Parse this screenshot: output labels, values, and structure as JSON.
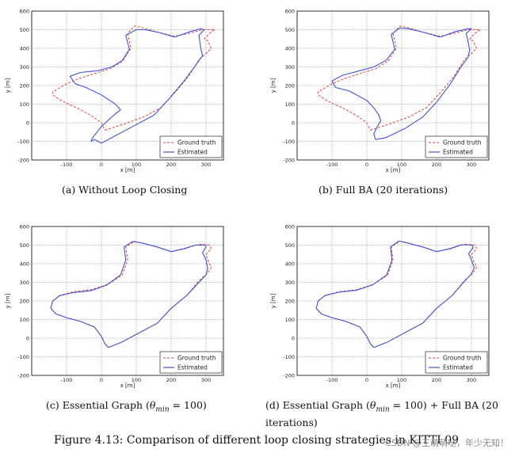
{
  "panels": [
    {
      "caption": "(a) Without Loop Closing",
      "xlabel": "x [m]",
      "ylabel": "y [m]",
      "legend": [
        "Ground truth",
        "Estimated"
      ]
    },
    {
      "caption": "(b) Full BA (20 iterations)",
      "xlabel": "x [m]",
      "ylabel": "y [m]",
      "legend": [
        "Ground truth",
        "Estimated"
      ]
    },
    {
      "caption": "(c) Essential Graph (θmin = 100)",
      "xlabel": "x [m]",
      "ylabel": "y [m]",
      "legend": [
        "Ground truth",
        "Estimated"
      ]
    },
    {
      "caption": "(d) Essential Graph (θmin = 100) + Full BA (20 iterations)",
      "xlabel": "x [m]",
      "ylabel": "y [m]",
      "legend": [
        "Ground truth",
        "Estimated"
      ]
    }
  ],
  "figure_caption": "Figure 4.13: Comparison of different loop closing strategies in KITTI 09",
  "watermark": "CSDN @王萌萌哒，年少无知！",
  "colors": {
    "ground_truth": "#e8403a",
    "estimated": "#3d55e0"
  },
  "chart_data": [
    {
      "type": "line",
      "xlim": [
        -200,
        350
      ],
      "ylim": [
        -200,
        600
      ],
      "xticks": [
        -100,
        0,
        100,
        200,
        300
      ],
      "yticks": [
        -200,
        -100,
        0,
        100,
        200,
        300,
        400,
        500,
        600
      ],
      "grid": true,
      "legend_position": "bottom-right",
      "series": [
        {
          "name": "Ground truth",
          "style": "dashed",
          "x": [
            10,
            60,
            120,
            170,
            215,
            250,
            280,
            305,
            315,
            305,
            295,
            310,
            325,
            290,
            250,
            210,
            165,
            120,
            95,
            75,
            85,
            60,
            25,
            -10,
            -60,
            -100,
            -140,
            -140,
            -120,
            -100,
            -70,
            -30,
            0,
            10
          ],
          "y": [
            -40,
            -10,
            30,
            80,
            170,
            250,
            340,
            380,
            400,
            440,
            450,
            480,
            500,
            500,
            480,
            465,
            485,
            510,
            520,
            480,
            400,
            330,
            290,
            270,
            240,
            210,
            165,
            150,
            125,
            105,
            80,
            40,
            0,
            -40
          ]
        },
        {
          "name": "Estimated",
          "style": "solid",
          "x": [
            -30,
            -20,
            0,
            40,
            90,
            150,
            190,
            235,
            265,
            290,
            285,
            280,
            295,
            285,
            255,
            210,
            165,
            125,
            100,
            70,
            80,
            60,
            30,
            -10,
            -60,
            -90,
            -75,
            -45,
            0,
            40,
            55,
            35,
            0,
            -25,
            -30
          ],
          "y": [
            -100,
            -90,
            -110,
            -70,
            -20,
            40,
            120,
            220,
            295,
            360,
            400,
            470,
            500,
            505,
            490,
            460,
            485,
            500,
            500,
            470,
            395,
            335,
            300,
            280,
            270,
            250,
            210,
            190,
            150,
            100,
            70,
            40,
            -20,
            -80,
            -100
          ]
        }
      ]
    },
    {
      "type": "line",
      "xlim": [
        -200,
        350
      ],
      "ylim": [
        -200,
        600
      ],
      "xticks": [
        -100,
        0,
        100,
        200,
        300
      ],
      "yticks": [
        -200,
        -100,
        0,
        100,
        200,
        300,
        400,
        500,
        600
      ],
      "grid": true,
      "legend_position": "bottom-right",
      "series": [
        {
          "name": "Ground truth",
          "style": "dashed",
          "x": [
            10,
            60,
            120,
            170,
            215,
            250,
            280,
            305,
            315,
            305,
            295,
            310,
            325,
            290,
            250,
            210,
            165,
            120,
            95,
            75,
            85,
            60,
            25,
            -10,
            -60,
            -100,
            -140,
            -140,
            -120,
            -100,
            -70,
            -30,
            0,
            10
          ],
          "y": [
            -40,
            -10,
            30,
            80,
            170,
            250,
            340,
            380,
            400,
            440,
            450,
            480,
            500,
            500,
            480,
            465,
            485,
            510,
            520,
            480,
            400,
            330,
            290,
            270,
            240,
            210,
            165,
            150,
            125,
            105,
            80,
            40,
            0,
            -40
          ]
        },
        {
          "name": "Estimated",
          "style": "solid",
          "x": [
            25,
            55,
            110,
            160,
            200,
            240,
            270,
            290,
            295,
            290,
            285,
            300,
            290,
            255,
            210,
            165,
            120,
            95,
            70,
            80,
            55,
            20,
            -20,
            -70,
            -100,
            -90,
            -50,
            0,
            20,
            35,
            40,
            30,
            20,
            25
          ],
          "y": [
            -90,
            -80,
            -30,
            30,
            110,
            210,
            300,
            350,
            390,
            440,
            480,
            505,
            505,
            490,
            460,
            485,
            505,
            510,
            475,
            395,
            335,
            300,
            280,
            255,
            225,
            190,
            170,
            120,
            80,
            40,
            10,
            -20,
            -60,
            -90
          ]
        }
      ]
    },
    {
      "type": "line",
      "xlim": [
        -200,
        350
      ],
      "ylim": [
        -200,
        600
      ],
      "xticks": [
        -100,
        0,
        100,
        200,
        300
      ],
      "yticks": [
        -200,
        -100,
        0,
        100,
        200,
        300,
        400,
        500,
        600
      ],
      "grid": true,
      "legend_position": "bottom-right",
      "series": [
        {
          "name": "Ground truth",
          "style": "dashed",
          "x": [
            20,
            60,
            110,
            160,
            200,
            245,
            280,
            305,
            315,
            305,
            300,
            315,
            310,
            280,
            240,
            200,
            160,
            120,
            95,
            70,
            75,
            60,
            20,
            -30,
            -80,
            -120,
            -140,
            -145,
            -130,
            -100,
            -60,
            -20,
            0,
            10,
            20
          ],
          "y": [
            -50,
            -20,
            30,
            80,
            160,
            230,
            310,
            350,
            380,
            420,
            450,
            480,
            500,
            505,
            480,
            465,
            490,
            510,
            520,
            490,
            420,
            340,
            290,
            260,
            250,
            230,
            200,
            160,
            130,
            110,
            90,
            60,
            10,
            -30,
            -50
          ]
        },
        {
          "name": "Estimated",
          "style": "solid",
          "x": [
            20,
            60,
            110,
            160,
            200,
            245,
            280,
            300,
            305,
            300,
            290,
            300,
            300,
            270,
            235,
            200,
            160,
            120,
            90,
            65,
            70,
            55,
            15,
            -30,
            -80,
            -120,
            -140,
            -145,
            -130,
            -100,
            -60,
            -20,
            0,
            10,
            20
          ],
          "y": [
            -50,
            -20,
            30,
            80,
            160,
            230,
            300,
            340,
            375,
            420,
            460,
            490,
            500,
            500,
            480,
            465,
            490,
            510,
            520,
            490,
            420,
            340,
            285,
            255,
            245,
            228,
            198,
            160,
            130,
            110,
            90,
            60,
            10,
            -30,
            -50
          ]
        }
      ]
    },
    {
      "type": "line",
      "xlim": [
        -200,
        350
      ],
      "ylim": [
        -200,
        600
      ],
      "xticks": [
        -100,
        0,
        100,
        200,
        300
      ],
      "yticks": [
        -200,
        -100,
        0,
        100,
        200,
        300,
        400,
        500,
        600
      ],
      "grid": true,
      "legend_position": "bottom-right",
      "series": [
        {
          "name": "Ground truth",
          "style": "dashed",
          "x": [
            20,
            60,
            110,
            160,
            200,
            245,
            280,
            305,
            315,
            305,
            300,
            315,
            310,
            280,
            240,
            200,
            160,
            120,
            95,
            70,
            75,
            60,
            20,
            -30,
            -80,
            -120,
            -140,
            -145,
            -130,
            -100,
            -60,
            -20,
            0,
            10,
            20
          ],
          "y": [
            -50,
            -20,
            30,
            80,
            160,
            230,
            310,
            350,
            380,
            420,
            450,
            480,
            500,
            505,
            480,
            465,
            490,
            510,
            520,
            490,
            420,
            340,
            290,
            260,
            250,
            230,
            200,
            160,
            130,
            110,
            90,
            60,
            10,
            -30,
            -50
          ]
        },
        {
          "name": "Estimated",
          "style": "solid",
          "x": [
            20,
            60,
            110,
            160,
            200,
            245,
            280,
            300,
            308,
            300,
            292,
            305,
            302,
            272,
            236,
            200,
            160,
            120,
            92,
            68,
            72,
            57,
            17,
            -30,
            -80,
            -120,
            -140,
            -145,
            -130,
            -100,
            -60,
            -20,
            0,
            10,
            20
          ],
          "y": [
            -50,
            -20,
            30,
            80,
            160,
            230,
            305,
            345,
            378,
            420,
            455,
            485,
            500,
            502,
            480,
            465,
            490,
            510,
            522,
            490,
            420,
            340,
            287,
            257,
            247,
            229,
            199,
            160,
            130,
            110,
            90,
            60,
            10,
            -30,
            -50
          ]
        }
      ]
    }
  ]
}
